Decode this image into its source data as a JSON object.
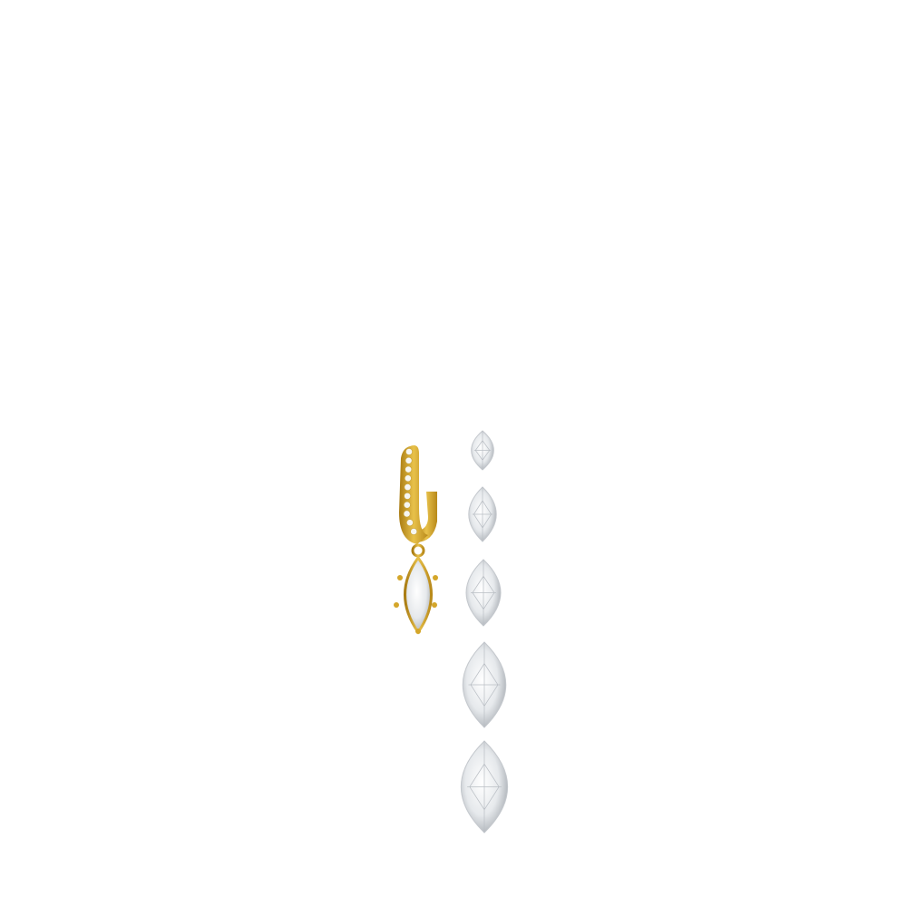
{
  "scene": {
    "background": "#ffffff",
    "earring": {
      "metal_color": "#d4a62a",
      "metal_shade": "#a97b12",
      "stone_count": 1,
      "pave_stones": 10
    },
    "loose_stones": {
      "shape": "marquise",
      "count": 5,
      "stone_color": "#e9ecef",
      "facet_color": "#b9bec4"
    }
  }
}
